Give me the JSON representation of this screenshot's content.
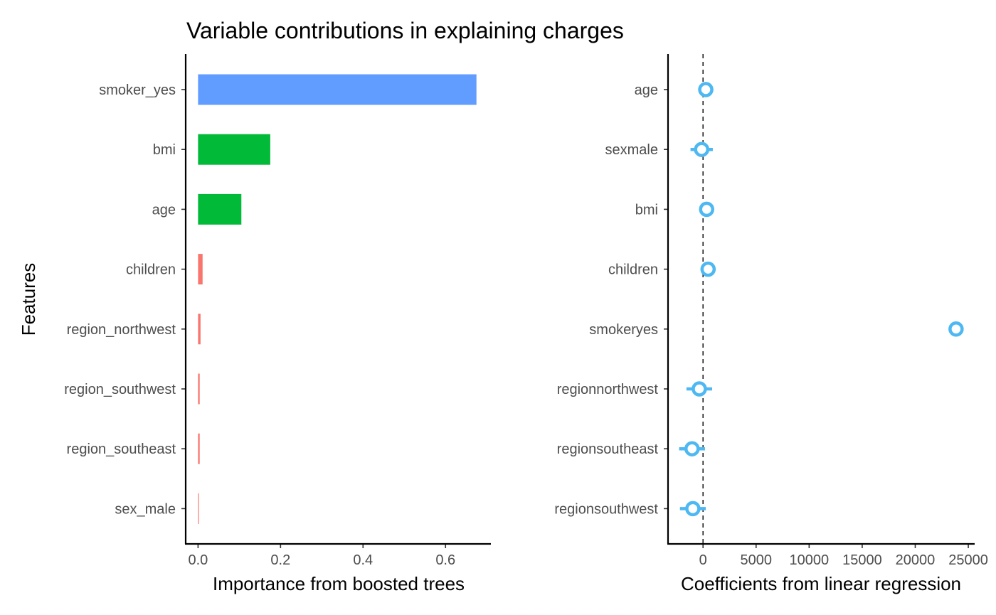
{
  "title": "Variable contributions in explaining charges",
  "ylabel": "Features",
  "chart_data": [
    {
      "type": "bar",
      "orientation": "horizontal",
      "xlabel": "Importance from boosted trees",
      "xlim": [
        -0.03,
        0.71
      ],
      "xticks": [
        "0.0",
        "0.2",
        "0.4",
        "0.6"
      ],
      "xtick_values": [
        0,
        0.2,
        0.4,
        0.6
      ],
      "categories": [
        "smoker_yes",
        "bmi",
        "age",
        "children",
        "region_northwest",
        "region_southwest",
        "region_southeast",
        "sex_male"
      ],
      "values": [
        0.675,
        0.175,
        0.105,
        0.011,
        0.006,
        0.004,
        0.004,
        0.002
      ],
      "colors": [
        "#619cff",
        "#00ba38",
        "#00ba38",
        "#f8766d",
        "#f8766d",
        "#f8766d",
        "#f8766d",
        "#f8766d"
      ],
      "grid": false
    },
    {
      "type": "scatter",
      "orientation": "horizontal",
      "xlabel": "Coefficients from linear regression",
      "xlim": [
        -3300,
        25600
      ],
      "xticks": [
        "0",
        "5000",
        "10000",
        "15000",
        "20000",
        "25000"
      ],
      "xtick_values": [
        0,
        5000,
        10000,
        15000,
        20000,
        25000
      ],
      "reference_line": 0,
      "categories": [
        "age",
        "sexmale",
        "bmi",
        "children",
        "smokeryes",
        "regionnorthwest",
        "regionsoutheast",
        "regionsouthwest"
      ],
      "estimates": [
        257,
        -131,
        339,
        476,
        23848,
        -353,
        -1035,
        -960
      ],
      "ci_low": [
        234,
        -1182,
        289,
        232,
        23222,
        -1562,
        -2253,
        -2176
      ],
      "ci_high": [
        280,
        920,
        390,
        719,
        24474,
        856,
        183,
        257
      ],
      "color": "#4db8f2",
      "grid": false
    }
  ]
}
